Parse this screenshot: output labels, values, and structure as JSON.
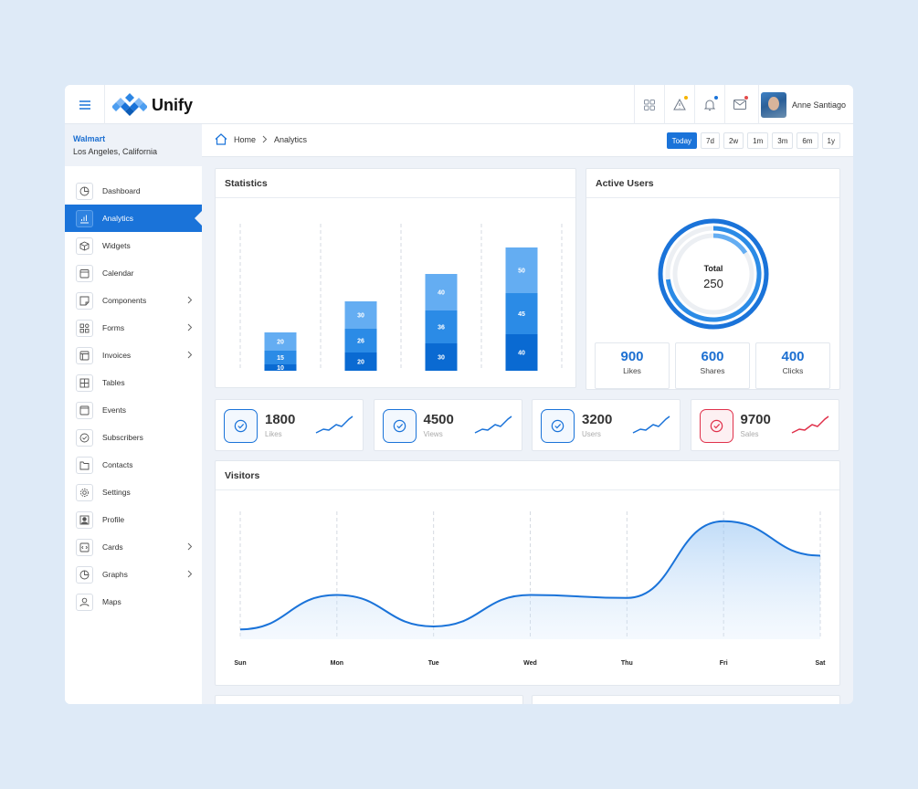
{
  "app": {
    "name": "Unify"
  },
  "topbar": {
    "icons": [
      "apps-grid-icon",
      "alert-triangle-icon",
      "bell-icon",
      "mail-icon"
    ],
    "badge_colors": {
      "alert": "#f5b400",
      "bell": "#1a73d9",
      "mail": "#e34b4b"
    },
    "user_name": "Anne Santiago"
  },
  "sidebar": {
    "company": "Walmart",
    "location": "Los Angeles, California",
    "items": [
      {
        "label": "Dashboard",
        "icon": "pie-chart-icon",
        "chevron": false
      },
      {
        "label": "Analytics",
        "icon": "bar-chart-icon",
        "chevron": false,
        "active": true
      },
      {
        "label": "Widgets",
        "icon": "cube-icon",
        "chevron": false
      },
      {
        "label": "Calendar",
        "icon": "calendar-icon",
        "chevron": false
      },
      {
        "label": "Components",
        "icon": "sticky-note-icon",
        "chevron": true
      },
      {
        "label": "Forms",
        "icon": "grid-icon",
        "chevron": true
      },
      {
        "label": "Invoices",
        "icon": "layout-icon",
        "chevron": true
      },
      {
        "label": "Tables",
        "icon": "table-icon",
        "chevron": false
      },
      {
        "label": "Events",
        "icon": "window-icon",
        "chevron": false
      },
      {
        "label": "Subscribers",
        "icon": "check-circle-icon",
        "chevron": false
      },
      {
        "label": "Contacts",
        "icon": "folder-icon",
        "chevron": false
      },
      {
        "label": "Settings",
        "icon": "gear-icon",
        "chevron": false
      },
      {
        "label": "Profile",
        "icon": "user-square-icon",
        "chevron": false
      },
      {
        "label": "Cards",
        "icon": "code-icon",
        "chevron": true
      },
      {
        "label": "Graphs",
        "icon": "pie-chart-icon",
        "chevron": true
      },
      {
        "label": "Maps",
        "icon": "user-icon",
        "chevron": false
      }
    ]
  },
  "breadcrumb": {
    "home": "Home",
    "current": "Analytics"
  },
  "ranges": [
    {
      "label": "Today",
      "active": true
    },
    {
      "label": "7d"
    },
    {
      "label": "2w"
    },
    {
      "label": "1m"
    },
    {
      "label": "3m"
    },
    {
      "label": "6m"
    },
    {
      "label": "1y"
    }
  ],
  "statistics": {
    "title": "Statistics",
    "chart_data": {
      "type": "bar",
      "stacked": true,
      "categories": [
        "",
        "",
        "",
        ""
      ],
      "series": [
        {
          "values": [
            10,
            20,
            30,
            40
          ],
          "color": "#0a6ad2"
        },
        {
          "values": [
            15,
            26,
            36,
            45
          ],
          "color": "#2b8be6"
        },
        {
          "values": [
            20,
            30,
            40,
            50
          ],
          "color": "#64adf2"
        }
      ],
      "grid": "vertical-dashed"
    }
  },
  "active_users": {
    "title": "Active Users",
    "total_label": "Total",
    "total_value": "250",
    "stats": [
      {
        "value": "900",
        "label": "Likes"
      },
      {
        "value": "600",
        "label": "Shares"
      },
      {
        "value": "400",
        "label": "Clicks"
      }
    ]
  },
  "kpis": [
    {
      "value": "1800",
      "label": "Likes",
      "color": "#1a73d9",
      "icon": "check-circle-icon"
    },
    {
      "value": "4500",
      "label": "Views",
      "color": "#1a73d9",
      "icon": "check-circle-icon"
    },
    {
      "value": "3200",
      "label": "Users",
      "color": "#1a73d9",
      "icon": "check-circle-icon"
    },
    {
      "value": "9700",
      "label": "Sales",
      "color": "#e0314b",
      "icon": "check-circle-icon"
    }
  ],
  "visitors": {
    "title": "Visitors",
    "chart_data": {
      "type": "area",
      "x": [
        "Sun",
        "Mon",
        "Tue",
        "Wed",
        "Thu",
        "Fri",
        "Sat"
      ],
      "values": [
        10,
        45,
        13,
        45,
        42,
        120,
        85
      ],
      "ylim": [
        0,
        130
      ],
      "color": "#1a73d9",
      "grid": "vertical-dashed"
    }
  }
}
